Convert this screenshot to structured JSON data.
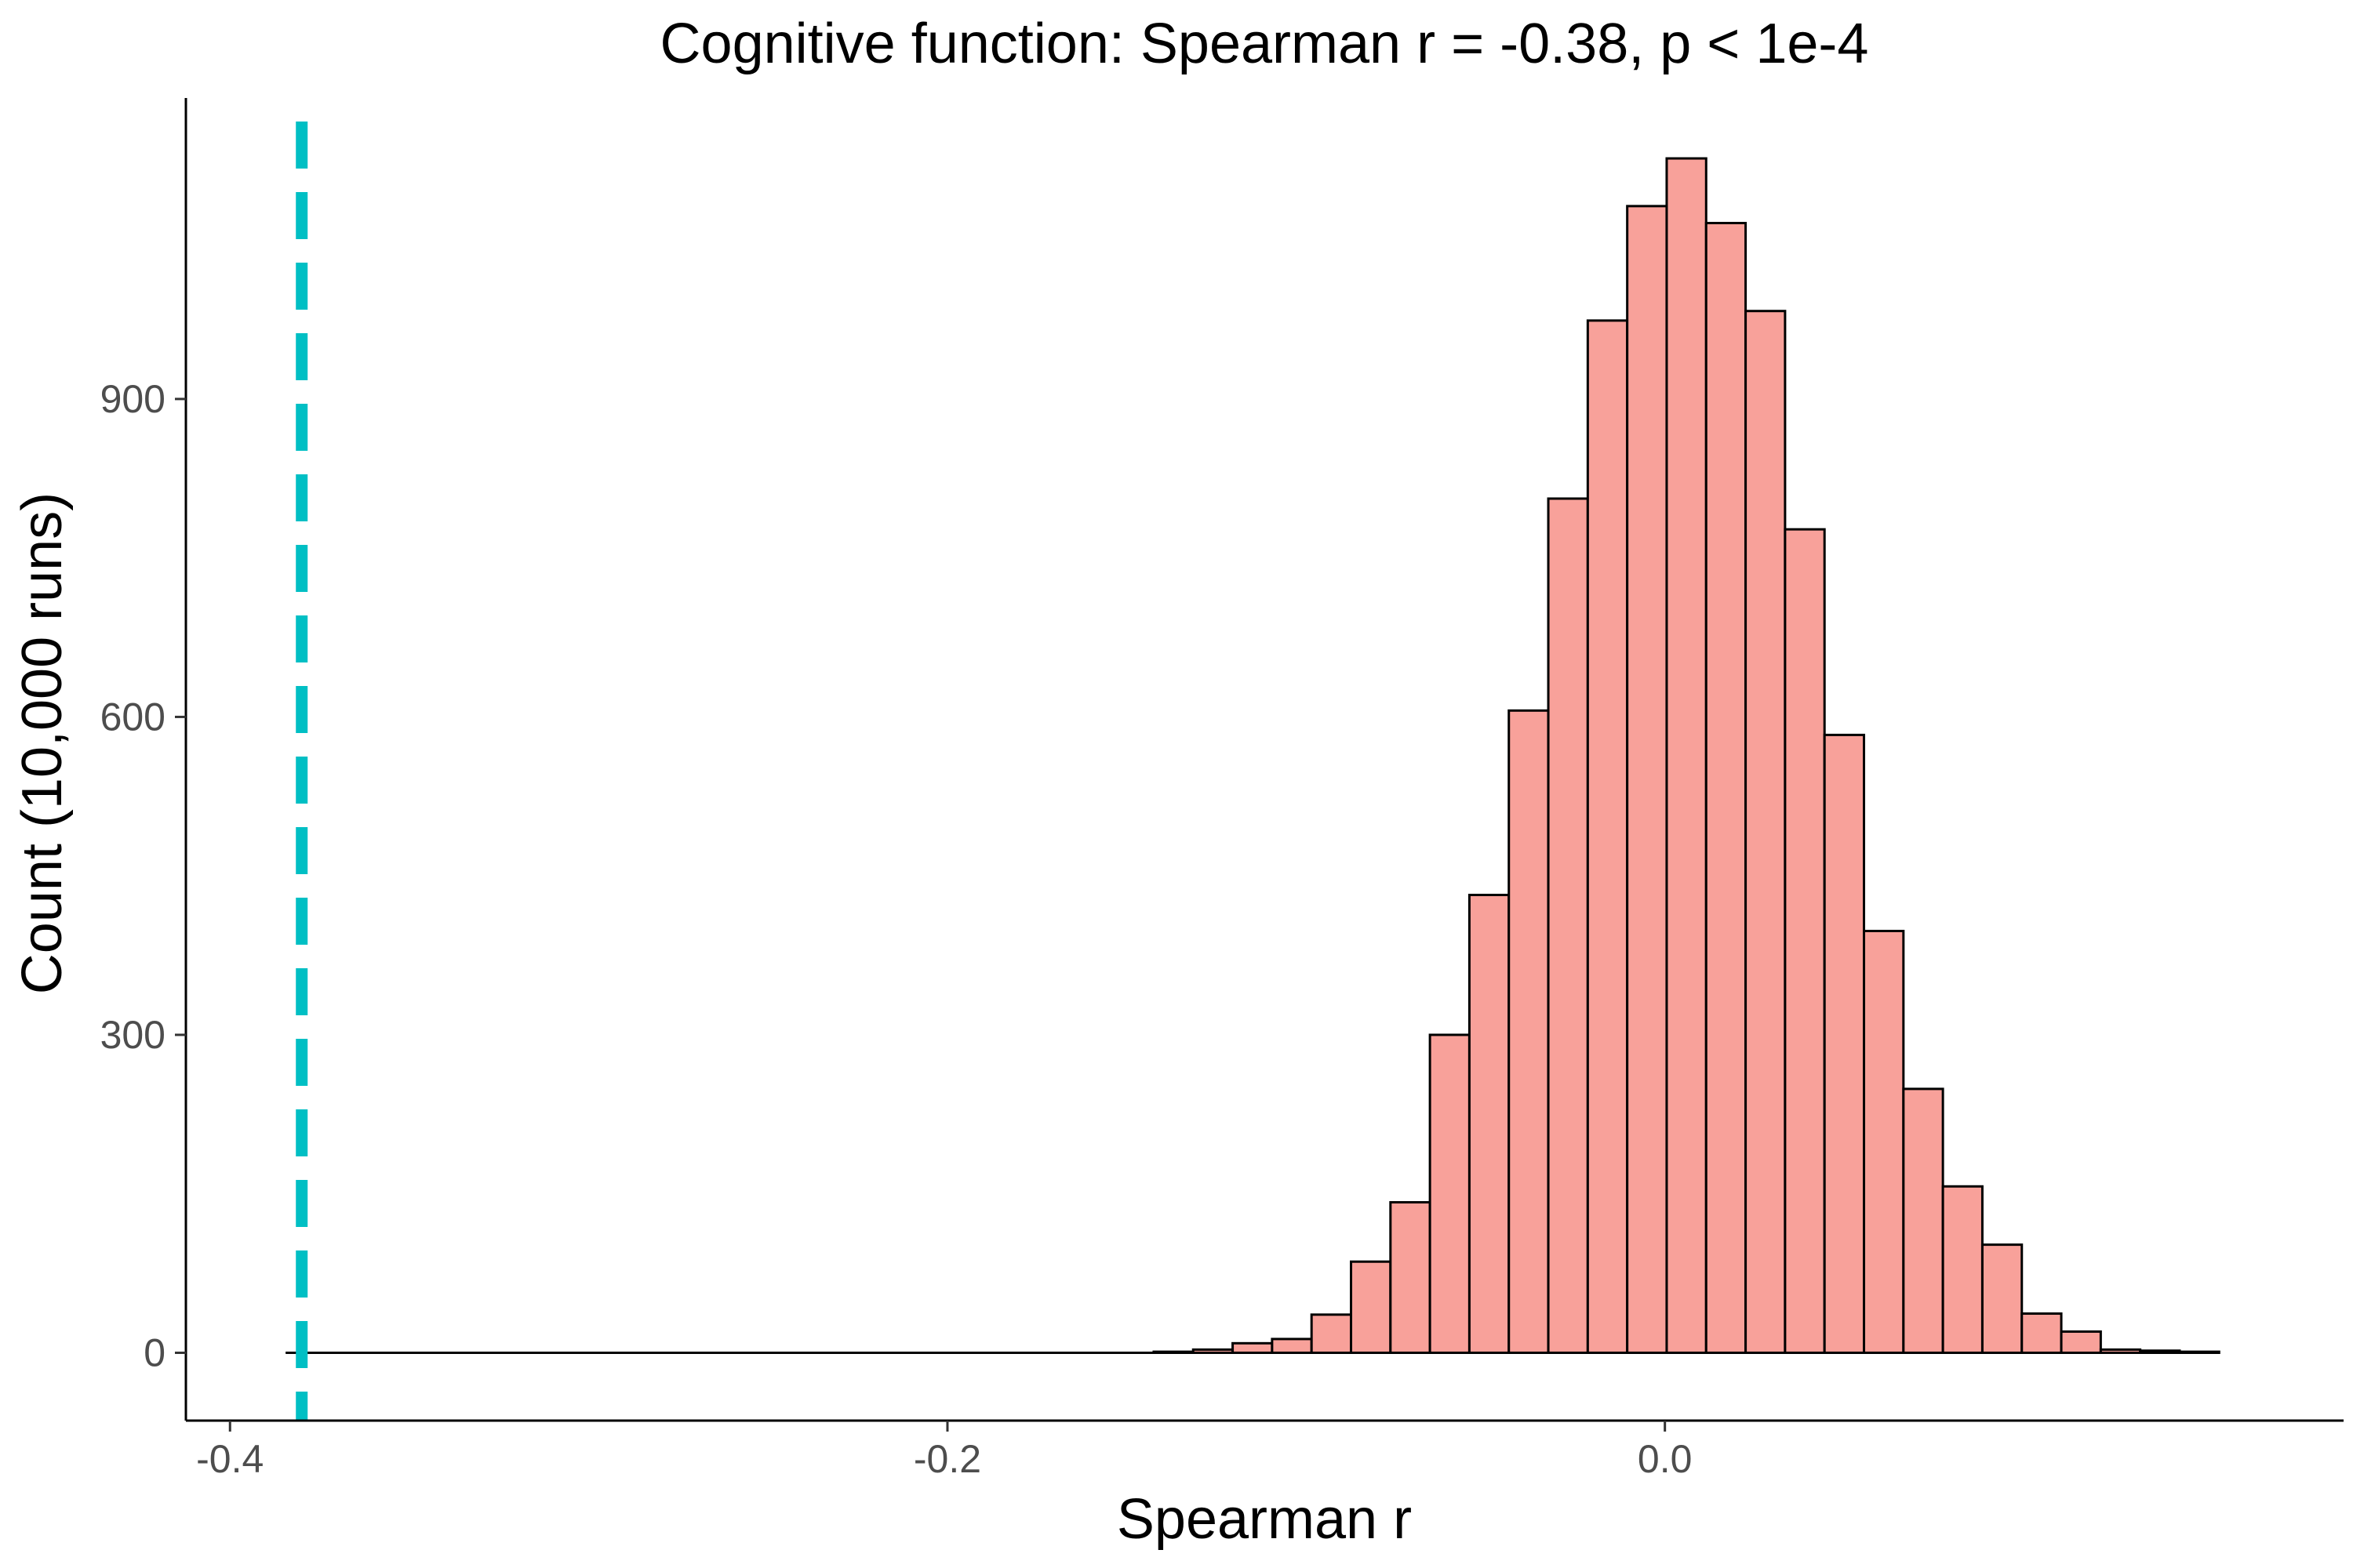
{
  "chart_data": {
    "type": "bar",
    "title": "Cognitive function: Spearman r = -0.38, p < 1e-4",
    "xlabel": "Spearman r",
    "ylabel": "Count (10,000 runs)",
    "xlim": [
      -0.4123,
      0.1892
    ],
    "ylim": [
      -64,
      1184
    ],
    "xticks": [
      -0.4,
      -0.2,
      0.0
    ],
    "xtick_labels": [
      "-0.4",
      "-0.2",
      "0.0"
    ],
    "yticks": [
      0,
      300,
      600,
      900
    ],
    "ytick_labels": [
      "0",
      "300",
      "600",
      "900"
    ],
    "bin_width": 0.011,
    "bin_centers": [
      -0.379,
      -0.368,
      -0.357,
      -0.346,
      -0.335,
      -0.324,
      -0.313,
      -0.302,
      -0.291,
      -0.28,
      -0.269,
      -0.258,
      -0.247,
      -0.236,
      -0.225,
      -0.214,
      -0.203,
      -0.192,
      -0.181,
      -0.17,
      -0.159,
      -0.148,
      -0.137,
      -0.126,
      -0.115,
      -0.104,
      -0.093,
      -0.082,
      -0.071,
      -0.06,
      -0.049,
      -0.038,
      -0.027,
      -0.016,
      -0.005,
      0.006,
      0.017,
      0.028,
      0.039,
      0.05,
      0.061,
      0.072,
      0.083,
      0.094,
      0.105,
      0.116,
      0.127,
      0.138,
      0.149
    ],
    "values": [
      0,
      0,
      0,
      0,
      0,
      0,
      0,
      0,
      0,
      0,
      0,
      0,
      0,
      0,
      0,
      0,
      0,
      0,
      0,
      0,
      0,
      0,
      1,
      3,
      9,
      13,
      36,
      86,
      142,
      300,
      432,
      606,
      806,
      974,
      1082,
      1127,
      1066,
      983,
      777,
      583,
      398,
      249,
      157,
      102,
      37,
      20,
      3,
      2,
      1
    ],
    "observed_value": -0.38,
    "colors": {
      "bar_fill": "#F8A19A",
      "bar_stroke": "#000000",
      "observed_line": "#00BFC4",
      "tick_label": "#4d4d4d"
    },
    "grid": false,
    "legend": "none"
  }
}
